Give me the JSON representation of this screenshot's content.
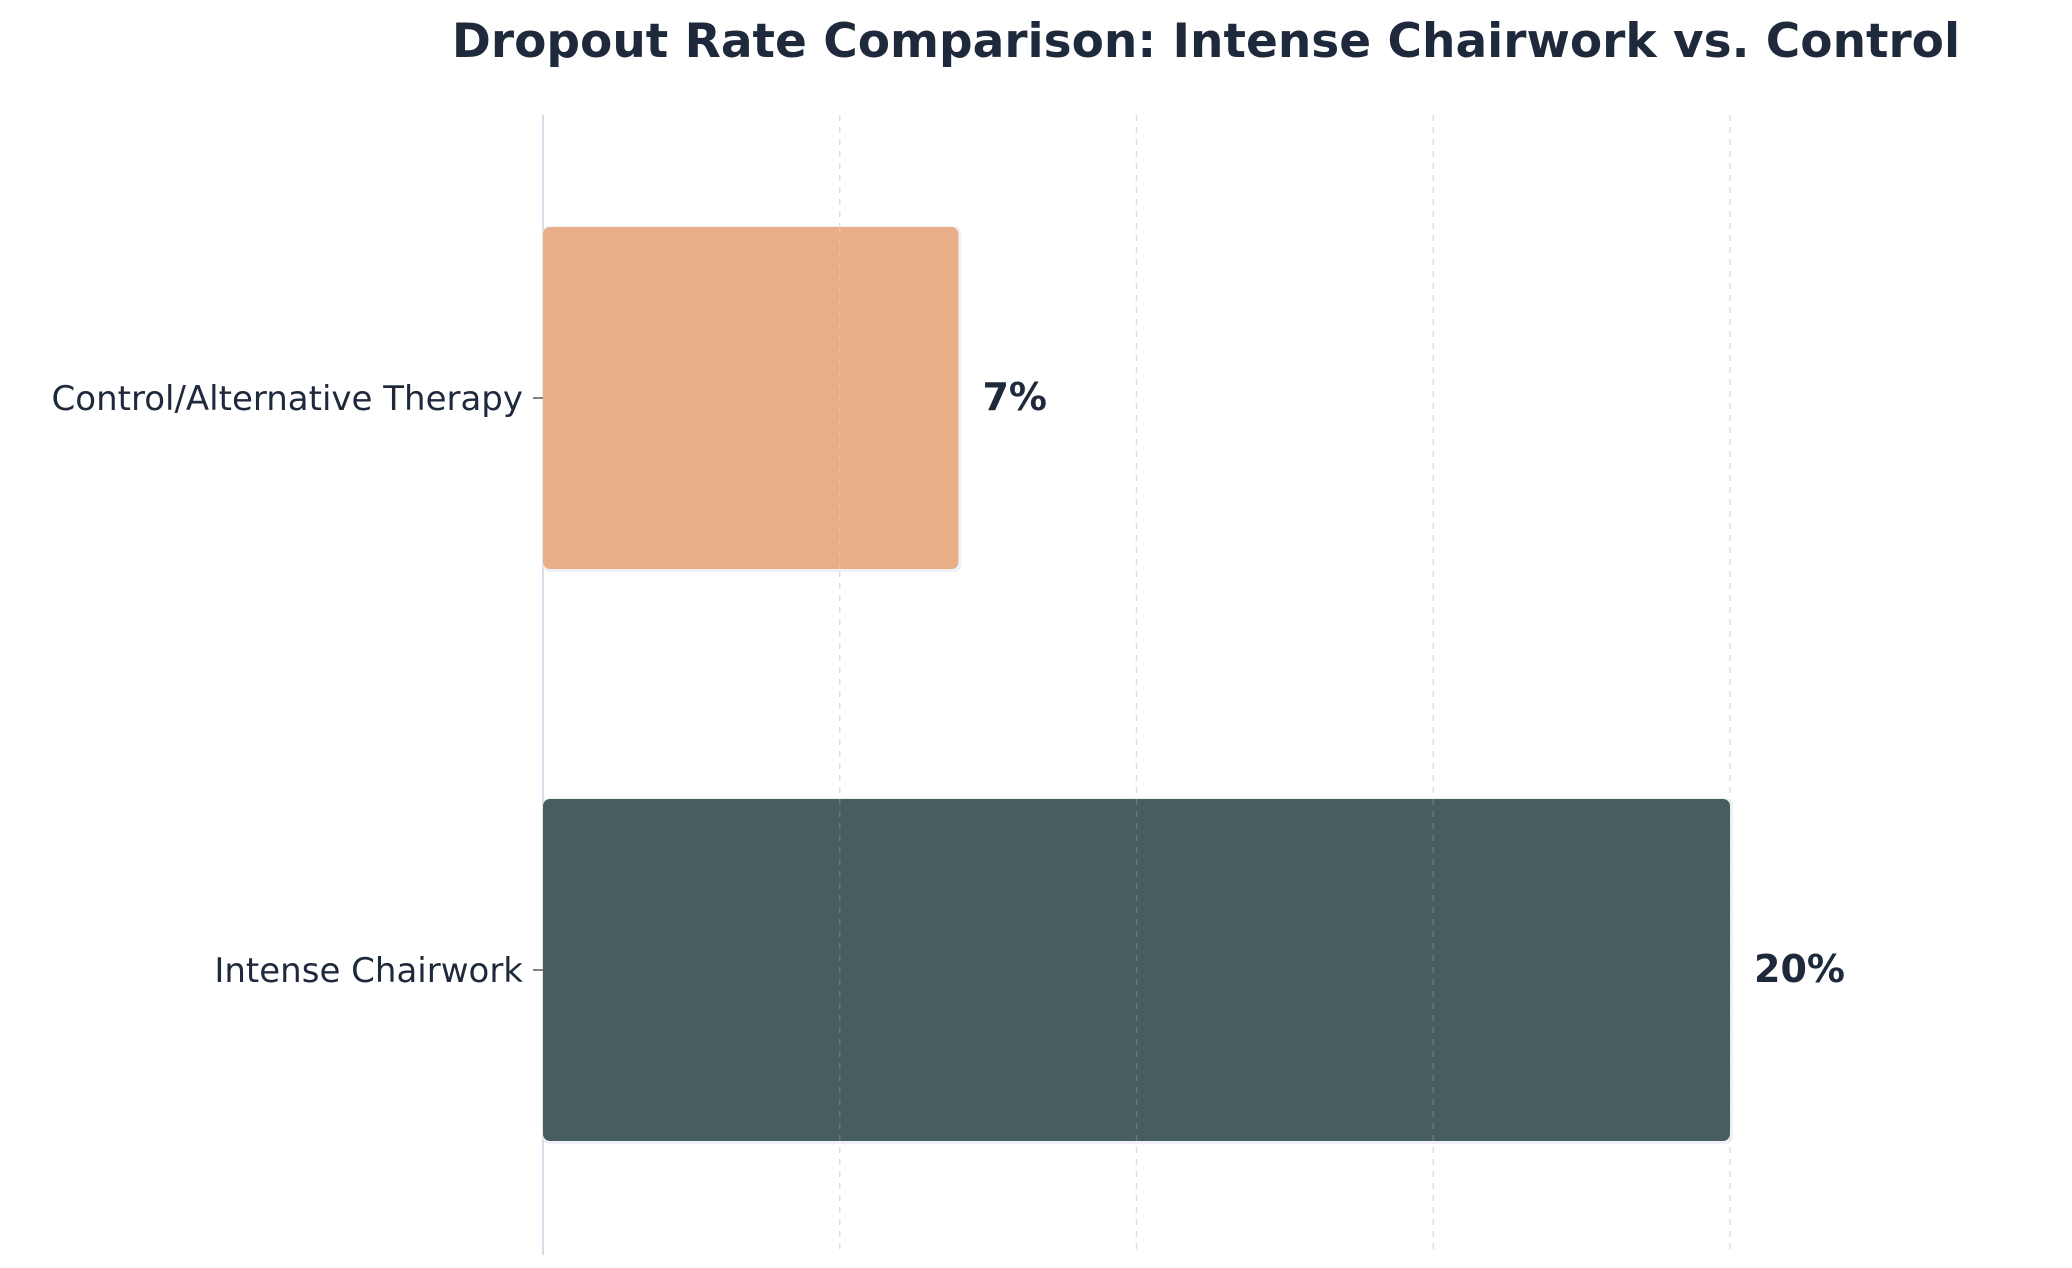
{
  "chart_data": {
    "type": "bar",
    "orientation": "horizontal",
    "title": "Dropout Rate Comparison: Intense Chairwork vs. Control",
    "xlabel": "",
    "ylabel": "",
    "categories": [
      "Intense Chairwork",
      "Control/Alternative Therapy"
    ],
    "values": [
      20,
      7
    ],
    "value_labels": [
      "20%",
      "7%"
    ],
    "unit": "%",
    "xlim": [
      0,
      20
    ],
    "grid": true,
    "x_tick_labels_visible": false,
    "legend": "none"
  },
  "colors": {
    "bars": [
      "#475e5f",
      "#e8ae87"
    ],
    "text": "#1e293b",
    "grid": "#d9dde3",
    "axis": "#d8dce8"
  }
}
